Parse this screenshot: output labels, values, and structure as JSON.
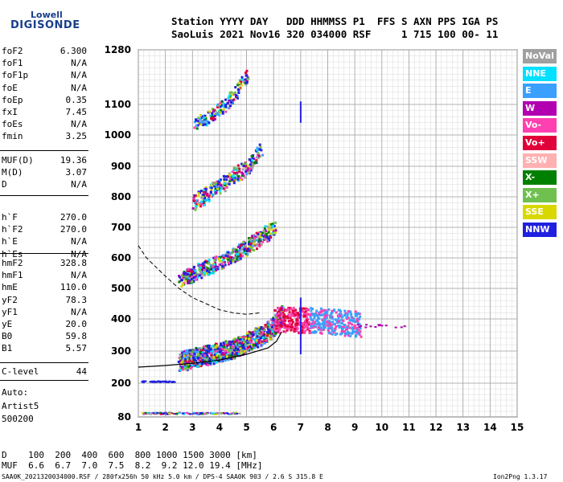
{
  "logo": {
    "line1": "Lowell",
    "line2": "DIGISONDE"
  },
  "header": {
    "line1": "Station YYYY DAY   DDD HHMMSS P1  FFS S AXN PPS IGA PS",
    "line2": "SaoLuis 2021 Nov16 320 034000 RSF     1 715 100 00- 11"
  },
  "param_groups": [
    [
      {
        "name": "foF2",
        "value": "6.300"
      },
      {
        "name": "foF1",
        "value": "N/A"
      },
      {
        "name": "foF1p",
        "value": "N/A"
      },
      {
        "name": "foE",
        "value": "N/A"
      },
      {
        "name": "foEp",
        "value": "0.35"
      },
      {
        "name": "fxI",
        "value": "7.45"
      },
      {
        "name": "foEs",
        "value": "N/A"
      },
      {
        "name": "fmin",
        "value": "3.25"
      }
    ],
    [
      {
        "name": "MUF(D)",
        "value": "19.36"
      },
      {
        "name": "M(D)",
        "value": "3.07"
      },
      {
        "name": "D",
        "value": "N/A"
      }
    ],
    [
      {
        "name": "h`F",
        "value": "270.0"
      },
      {
        "name": "h`F2",
        "value": "270.0"
      },
      {
        "name": "h`E",
        "value": "N/A"
      },
      {
        "name": "h`Es",
        "value": "N/A"
      }
    ],
    [
      {
        "name": "hmF2",
        "value": "328.8"
      },
      {
        "name": "hmF1",
        "value": "N/A"
      },
      {
        "name": "hmE",
        "value": "110.0"
      },
      {
        "name": "yF2",
        "value": "78.3"
      },
      {
        "name": "yF1",
        "value": "N/A"
      },
      {
        "name": "yE",
        "value": "20.0"
      },
      {
        "name": "B0",
        "value": "59.8"
      },
      {
        "name": "B1",
        "value": "5.57"
      }
    ],
    [
      {
        "name": "C-level",
        "value": "44"
      }
    ]
  ],
  "misc": [
    "Auto:",
    "Artist5",
    "500200"
  ],
  "legend": [
    {
      "label": "NoVal",
      "color": "#a0a0a0"
    },
    {
      "label": "NNE",
      "color": "#00e0ff"
    },
    {
      "label": "E",
      "color": "#3aa0ff"
    },
    {
      "label": "W",
      "color": "#b000b0"
    },
    {
      "label": "Vo-",
      "color": "#ff40b0"
    },
    {
      "label": "Vo+",
      "color": "#e0003a"
    },
    {
      "label": "SSW",
      "color": "#ffb0b0"
    },
    {
      "label": "X-",
      "color": "#008000"
    },
    {
      "label": "X+",
      "color": "#70c050"
    },
    {
      "label": "SSE",
      "color": "#d8d800"
    },
    {
      "label": "NNW",
      "color": "#2020e0"
    }
  ],
  "muf_table": {
    "row1": "D    100  200  400  600  800 1000 1500 3000 [km]",
    "row2": "MUF  6.6  6.7  7.0  7.5  8.2  9.2 12.0 19.4 [MHz]"
  },
  "footer": {
    "left": "SAA0K_2021320034000.RSF / 280fx256h 50 kHz 5.0 km / DPS-4 SAA0K 903 / 2.6 S 315.8 E",
    "right": "Ion2Png 1.3.17"
  },
  "chart_data": {
    "type": "scatter",
    "title": "",
    "xlabel": "",
    "ylabel": "",
    "xlim": [
      1,
      15
    ],
    "ylim": [
      80,
      1280
    ],
    "x_scale": "linear",
    "y_scale": "nonlinear (ionogram virtual height)",
    "x_ticks": [
      1,
      2,
      3,
      4,
      5,
      6,
      7,
      8,
      9,
      10,
      11,
      12,
      13,
      14,
      15
    ],
    "y_ticks": [
      80,
      200,
      300,
      400,
      500,
      600,
      700,
      800,
      900,
      1000,
      1100,
      1280
    ],
    "grid": true,
    "traces": [
      {
        "name": "O-trace F2 (1st hop)",
        "color_key": "mixed",
        "x": [
          2.5,
          3.0,
          3.5,
          4.0,
          4.5,
          5.0,
          5.5,
          6.0,
          6.3
        ],
        "y": [
          270,
          280,
          290,
          300,
          310,
          330,
          350,
          380,
          420
        ]
      },
      {
        "name": "multi-hop 2",
        "x": [
          2.5,
          3.0,
          3.5,
          4.0,
          4.5,
          5.0,
          5.5,
          6.0
        ],
        "y": [
          530,
          550,
          570,
          590,
          610,
          640,
          670,
          700
        ]
      },
      {
        "name": "multi-hop 3",
        "x": [
          3.0,
          3.5,
          4.0,
          4.5,
          5.0,
          5.5
        ],
        "y": [
          780,
          810,
          840,
          870,
          900,
          960
        ]
      },
      {
        "name": "multi-hop 4",
        "x": [
          3.0,
          3.5,
          4.0,
          4.5,
          5.0
        ],
        "y": [
          1030,
          1060,
          1090,
          1130,
          1200
        ]
      },
      {
        "name": "spread F",
        "x": [
          6.0,
          6.5,
          7.0,
          7.5,
          8.0,
          8.5,
          9.0
        ],
        "y": [
          380,
          400,
          390,
          380,
          380,
          380,
          380
        ]
      }
    ],
    "model_profile": {
      "x": [
        1.0,
        2.0,
        3.0,
        4.0,
        5.0,
        5.8,
        6.1,
        6.3
      ],
      "y": [
        250,
        255,
        262,
        272,
        290,
        310,
        330,
        360
      ]
    },
    "muf_curve": {
      "x": [
        1.0,
        1.3,
        2.0,
        2.5,
        3.0,
        3.5,
        4.0,
        4.5,
        5.0,
        5.5
      ],
      "y": [
        640,
        600,
        540,
        500,
        470,
        450,
        430,
        420,
        415,
        420
      ]
    }
  }
}
